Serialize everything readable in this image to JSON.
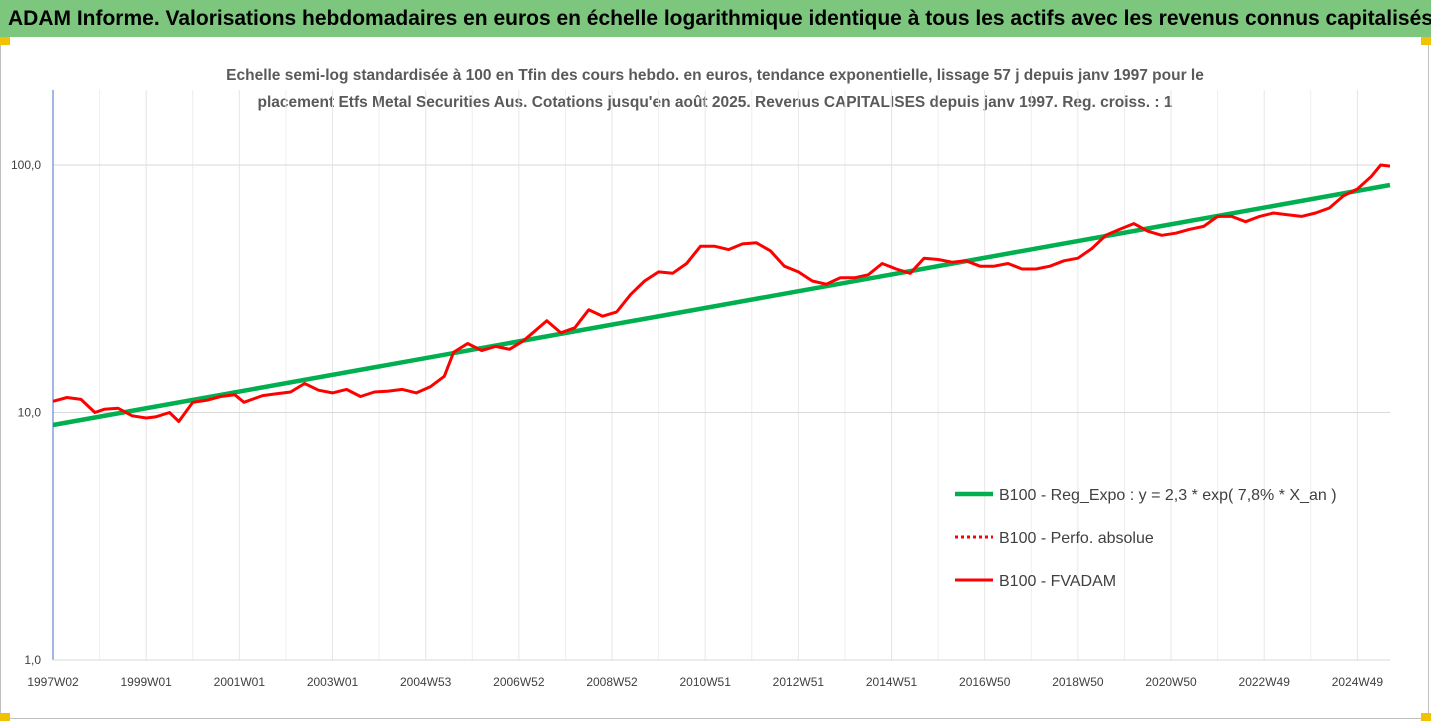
{
  "header": {
    "title": "ADAM Informe. Valorisations hebdomadaires en euros en échelle logarithmique identique à tous les actifs avec les revenus connus capitalisés",
    "banner_color": "#7dc67d"
  },
  "chart_data": {
    "type": "line",
    "title": "",
    "subtitle_lines": [
      "Echelle semi-log standardisée à 100 en Tfin des cours hebdo. en euros, tendance exponentielle, lissage 57 j depuis janv 1997 pour le",
      "placement Etfs Metal Securities Aus. Cotations jusqu'en août 2025. Revenus CAPITALISES depuis janv 1997. Reg. croiss. : 1"
    ],
    "xlabel": "",
    "ylabel": "",
    "y_scale": "log",
    "ylim": [
      1,
      200
    ],
    "y_ticks": [
      {
        "value": 1,
        "label": "1,0"
      },
      {
        "value": 10,
        "label": "10,0"
      },
      {
        "value": 100,
        "label": "100,0"
      }
    ],
    "xlim": [
      1997.0,
      2025.7
    ],
    "x_ticks": [
      {
        "year": 1997.0,
        "label": "1997W02"
      },
      {
        "year": 1999.0,
        "label": "1999W01"
      },
      {
        "year": 2001.0,
        "label": "2001W01"
      },
      {
        "year": 2003.0,
        "label": "2003W01"
      },
      {
        "year": 2005.0,
        "label": "2004W53"
      },
      {
        "year": 2007.0,
        "label": "2006W52"
      },
      {
        "year": 2009.0,
        "label": "2008W52"
      },
      {
        "year": 2011.0,
        "label": "2010W51"
      },
      {
        "year": 2013.0,
        "label": "2012W51"
      },
      {
        "year": 2015.0,
        "label": "2014W51"
      },
      {
        "year": 2017.0,
        "label": "2016W50"
      },
      {
        "year": 2019.0,
        "label": "2018W50"
      },
      {
        "year": 2021.0,
        "label": "2020W50"
      },
      {
        "year": 2023.0,
        "label": "2022W49"
      },
      {
        "year": 2025.0,
        "label": "2024W49"
      }
    ],
    "grid": {
      "vertical": true,
      "horizontal": true
    },
    "legend_position": "right",
    "series": [
      {
        "name": "B100 - Reg_Expo : y = 2,3 * exp( 7,8% *  X_an )",
        "style": "solid-thick",
        "color": "#00b050",
        "x": [
          1997.0,
          2025.7
        ],
        "y": [
          8.9,
          83.0
        ]
      },
      {
        "name": "B100 - Perfo. absolue",
        "style": "dotted",
        "color": "#ff0000",
        "x": [],
        "y": []
      },
      {
        "name": "B100 - FVADAM",
        "style": "solid",
        "color": "#ff0000",
        "x": [
          1997.0,
          1997.3,
          1997.6,
          1997.9,
          1998.1,
          1998.4,
          1998.7,
          1999.0,
          1999.2,
          1999.5,
          1999.7,
          2000.0,
          2000.3,
          2000.6,
          2000.9,
          2001.1,
          2001.5,
          2001.8,
          2002.1,
          2002.4,
          2002.7,
          2003.0,
          2003.3,
          2003.6,
          2003.9,
          2004.2,
          2004.5,
          2004.8,
          2005.1,
          2005.4,
          2005.6,
          2005.9,
          2006.2,
          2006.5,
          2006.8,
          2007.1,
          2007.3,
          2007.6,
          2007.9,
          2008.2,
          2008.5,
          2008.8,
          2009.1,
          2009.4,
          2009.7,
          2010.0,
          2010.3,
          2010.6,
          2010.9,
          2011.2,
          2011.5,
          2011.8,
          2012.1,
          2012.4,
          2012.7,
          2013.0,
          2013.3,
          2013.6,
          2013.9,
          2014.2,
          2014.5,
          2014.8,
          2015.1,
          2015.4,
          2015.7,
          2016.0,
          2016.3,
          2016.6,
          2016.9,
          2017.2,
          2017.5,
          2017.8,
          2018.1,
          2018.4,
          2018.7,
          2019.0,
          2019.3,
          2019.6,
          2019.9,
          2020.2,
          2020.5,
          2020.8,
          2021.1,
          2021.4,
          2021.7,
          2022.0,
          2022.3,
          2022.6,
          2022.9,
          2023.2,
          2023.5,
          2023.8,
          2024.1,
          2024.4,
          2024.7,
          2025.0,
          2025.3,
          2025.5,
          2025.7
        ],
        "y": [
          11.1,
          11.5,
          11.3,
          10.0,
          10.3,
          10.4,
          9.7,
          9.5,
          9.6,
          10.0,
          9.2,
          11.0,
          11.2,
          11.6,
          11.8,
          11.0,
          11.7,
          11.9,
          12.1,
          13.1,
          12.3,
          12.0,
          12.4,
          11.6,
          12.1,
          12.2,
          12.4,
          12.0,
          12.7,
          14.0,
          17.5,
          19.0,
          17.8,
          18.5,
          18.0,
          19.5,
          21.0,
          23.5,
          21.0,
          22.0,
          26.0,
          24.5,
          25.5,
          30.0,
          34.0,
          37.0,
          36.5,
          40.0,
          47.0,
          47.0,
          45.5,
          48.0,
          48.5,
          45.0,
          39.0,
          37.0,
          34.0,
          33.0,
          35.0,
          35.0,
          36.0,
          40.0,
          38.0,
          36.5,
          42.0,
          41.5,
          40.5,
          41.0,
          39.0,
          39.0,
          40.0,
          38.0,
          38.0,
          39.0,
          41.0,
          42.0,
          46.0,
          52.0,
          55.0,
          58.0,
          54.0,
          52.0,
          53.0,
          55.0,
          56.5,
          62.0,
          62.0,
          59.0,
          62.0,
          64.0,
          63.0,
          62.0,
          64.0,
          67.0,
          75.0,
          80.0,
          90.0,
          100.0,
          99.0
        ]
      }
    ]
  }
}
